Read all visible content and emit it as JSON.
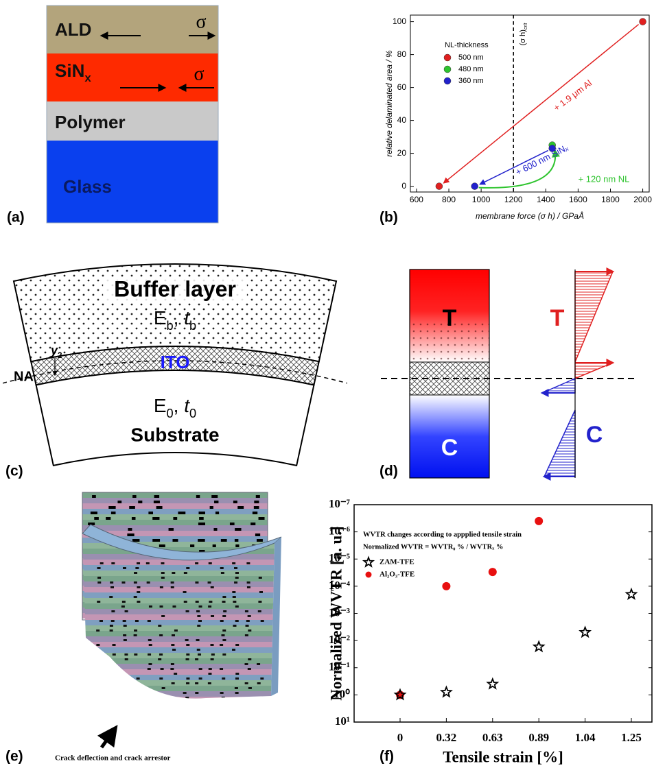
{
  "panels": {
    "a": "(a)",
    "b": "(b)",
    "c": "(c)",
    "d": "(d)",
    "e": "(e)",
    "f": "(f)"
  },
  "panel_a": {
    "layers": [
      {
        "name": "ALD"
      },
      {
        "name": "SiN",
        "sub": "x"
      },
      {
        "name": "Polymer"
      },
      {
        "name": "Glass"
      }
    ],
    "stress_labels": [
      "σ",
      "σ"
    ]
  },
  "panel_c": {
    "buffer": "Buffer layer",
    "buffer_modulus": [
      "E",
      "b"
    ],
    "buffer_thickness": [
      "t",
      "b"
    ],
    "y_label": [
      "y",
      "2"
    ],
    "na": "NA",
    "ito": "ITO",
    "substrate_modulus": [
      "E",
      "0"
    ],
    "substrate_thickness": [
      "t",
      "0"
    ],
    "substrate": "Substrate"
  },
  "panel_d": {
    "tension": [
      "T",
      "T"
    ],
    "compression": [
      "C",
      "C"
    ]
  },
  "panel_e": {
    "caption": "Crack deflection and crack arrestor"
  },
  "chart_data": [
    {
      "type": "scatter",
      "x_label": "membrane force (σ h) / GPaÅ",
      "y_label": "relative delaminated area / %",
      "legend_title": "NL-thickness",
      "series": [
        {
          "name": "500 nm",
          "color": "#e02020",
          "x": [
            740,
            2000
          ],
          "values": [
            0,
            100
          ]
        },
        {
          "name": "480 nm",
          "color": "#2ec42e",
          "x": [
            1440
          ],
          "values": [
            25
          ]
        },
        {
          "name": "360 nm",
          "color": "#2222cc",
          "x": [
            960,
            1440
          ],
          "values": [
            0,
            23
          ]
        }
      ],
      "xlim": [
        562,
        2040
      ],
      "ylim": [
        -3.5,
        104
      ],
      "xticks": [
        600,
        800,
        1000,
        1200,
        1400,
        1600,
        1800,
        2000
      ],
      "yticks": [
        0,
        20,
        40,
        60,
        80,
        100
      ],
      "vline": {
        "x": 1200,
        "label": "(σ h)",
        "label_sub": "crit"
      },
      "annotations": [
        "+ 1.9 μm Al",
        "+ 600 nm SiNₓ",
        "+ 120 nm NL"
      ]
    },
    {
      "type": "scatter",
      "log_y": true,
      "y_reversed": true,
      "x_label": "Tensile strain [%]",
      "y_label": "Normalized WVTR [a. u.]",
      "notes": [
        "WVTR changes according to appplied tensile strain",
        "Normalized WVTR = WVTR₀ % / WVTRₓ %"
      ],
      "categories": [
        "0",
        "0.32",
        "0.63",
        "0.89",
        "1.04",
        "1.25"
      ],
      "series": [
        {
          "name": "ZAM-TFE",
          "color": "#000000",
          "marker": "star",
          "values": [
            1,
            0.8,
            0.4,
            0.017,
            0.005,
            0.0002
          ]
        },
        {
          "name": "Al₂O₃-TFE",
          "color": "#e81010",
          "marker": "circle",
          "values": [
            1,
            0.0001,
            3e-05,
            4e-07,
            null,
            null
          ]
        }
      ],
      "ylim": [
        1e-07,
        10
      ],
      "yticks": [
        {
          "value": 1e-07,
          "label": "10⁻⁷"
        },
        {
          "value": 1e-06,
          "label": "10⁻⁶"
        },
        {
          "value": 1e-05,
          "label": "10⁻⁵"
        },
        {
          "value": 0.0001,
          "label": "10⁻⁴"
        },
        {
          "value": 0.001,
          "label": "10⁻³"
        },
        {
          "value": 0.01,
          "label": "10⁻²"
        },
        {
          "value": 0.1,
          "label": "10⁻¹"
        },
        {
          "value": 1,
          "label": "10⁰"
        },
        {
          "value": 10,
          "label": "10¹"
        }
      ]
    }
  ]
}
